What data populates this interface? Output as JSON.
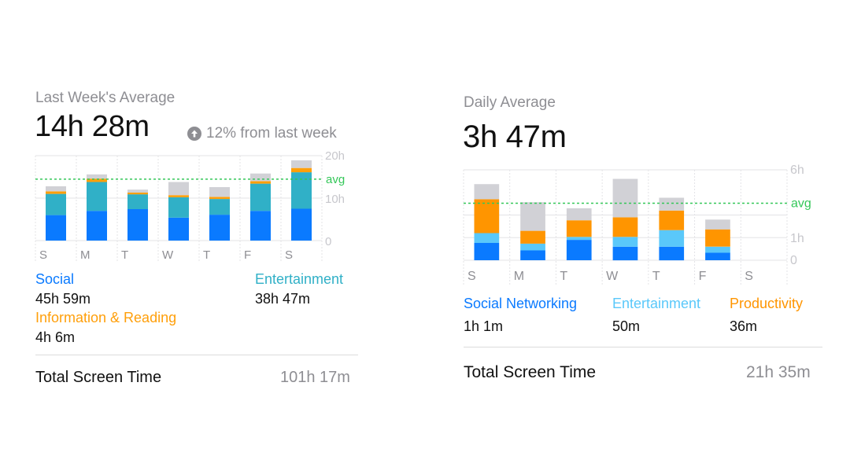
{
  "left": {
    "subtitle": "Last Week's Average",
    "average": "14h 28m",
    "delta_text": "12% from last week",
    "categories": [
      {
        "label": "Social",
        "value": "45h 59m",
        "color": "#0a7aff"
      },
      {
        "label": "Entertainment",
        "value": "38h 47m",
        "color": "#30b0c7"
      },
      {
        "label": "Information & Reading",
        "value": "4h 6m",
        "color": "#ff9f0a"
      }
    ],
    "total_label": "Total Screen Time",
    "total_value": "101h 17m",
    "chart_data": {
      "type": "bar",
      "stacked": true,
      "categories": [
        "S",
        "M",
        "T",
        "W",
        "T",
        "F",
        "S"
      ],
      "y_ticks": [
        "20h",
        "10h",
        "0"
      ],
      "ylim": [
        0,
        20
      ],
      "avg_label": "avg",
      "avg_value": 14.47,
      "grid": true,
      "series": [
        {
          "name": "Social",
          "color": "#0a7aff",
          "values": [
            6.0,
            7.0,
            7.4,
            5.4,
            6.1,
            7.0,
            7.5
          ]
        },
        {
          "name": "Entertainment",
          "color": "#30b0c7",
          "values": [
            5.0,
            6.8,
            3.5,
            4.8,
            3.7,
            6.4,
            8.6
          ]
        },
        {
          "name": "Information & Reading",
          "color": "#ff9f0a",
          "values": [
            0.6,
            0.8,
            0.4,
            0.5,
            0.5,
            0.6,
            1.0
          ]
        },
        {
          "name": "Other",
          "color": "#d1d1d6",
          "values": [
            1.2,
            1.0,
            0.7,
            3.1,
            2.3,
            1.8,
            1.8
          ]
        }
      ]
    }
  },
  "right": {
    "subtitle": "Daily Average",
    "average": "3h 47m",
    "categories": [
      {
        "label": "Social Networking",
        "value": "1h 1m",
        "color": "#0a7aff"
      },
      {
        "label": "Entertainment",
        "value": "50m",
        "color": "#5ac8fa"
      },
      {
        "label": "Productivity",
        "value": "36m",
        "color": "#ff9500"
      }
    ],
    "total_label": "Total Screen Time",
    "total_value": "21h 35m",
    "chart_data": {
      "type": "bar",
      "stacked": true,
      "categories": [
        "S",
        "M",
        "T",
        "W",
        "T",
        "F",
        "S"
      ],
      "y_ticks": [
        "6h",
        "1h",
        "0"
      ],
      "ylim": [
        0,
        6
      ],
      "avg_label": "avg",
      "avg_value": 3.78,
      "grid": true,
      "series": [
        {
          "name": "Social Networking",
          "color": "#0a7aff",
          "values": [
            1.15,
            0.65,
            1.35,
            0.9,
            0.9,
            0.5,
            0
          ]
        },
        {
          "name": "Entertainment",
          "color": "#5ac8fa",
          "values": [
            0.65,
            0.45,
            0.2,
            0.65,
            1.1,
            0.4,
            0
          ]
        },
        {
          "name": "Productivity",
          "color": "#ff9500",
          "values": [
            2.25,
            0.85,
            1.1,
            1.3,
            1.3,
            1.15,
            0
          ]
        },
        {
          "name": "Other",
          "color": "#d1d1d6",
          "values": [
            1.0,
            1.9,
            0.8,
            2.55,
            0.85,
            0.65,
            0
          ]
        }
      ]
    }
  }
}
